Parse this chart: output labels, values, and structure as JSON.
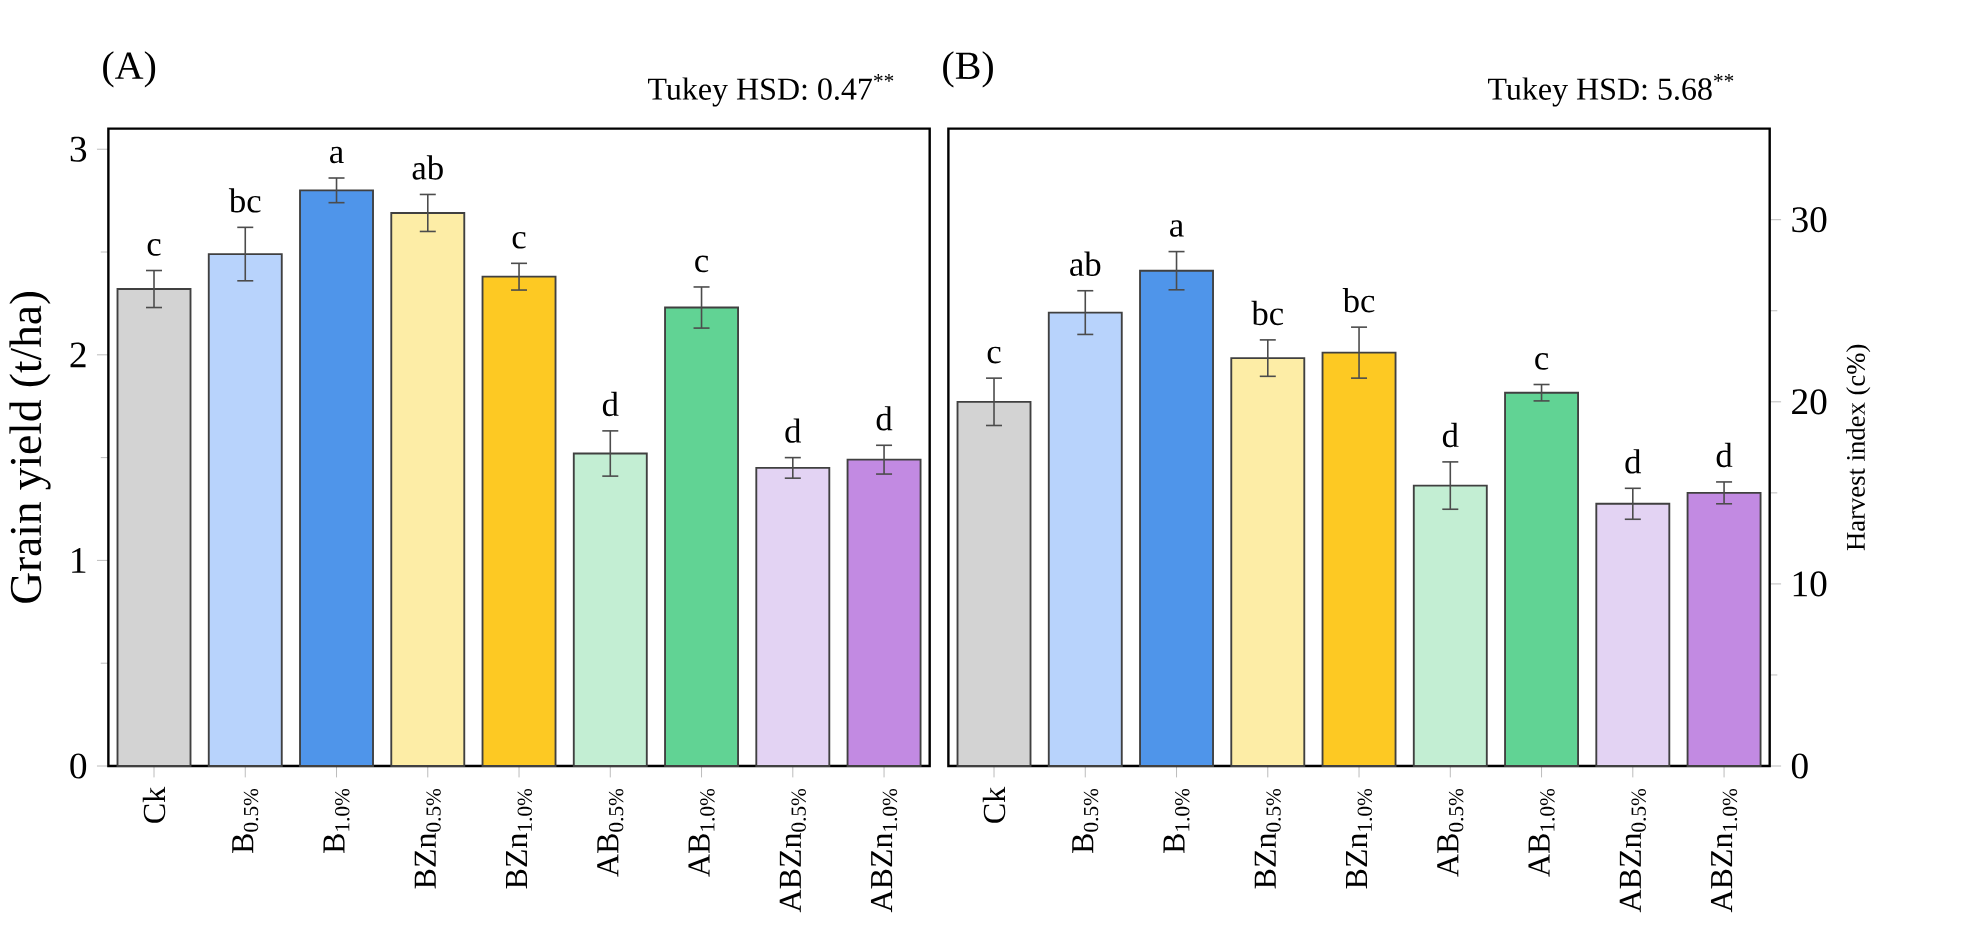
{
  "chart_data": [
    {
      "type": "bar",
      "title": "(A)",
      "ylabel": "Grain yield (t/ha)",
      "annotations": [
        "Tukey HSD: 0.47$^{**}$"
      ],
      "categories": [
        "Ck",
        "B$_{0.5%}$",
        "B$_{1.0%}$",
        "BZn$_{0.5%}$",
        "BZn$_{1.0%}$",
        "AB$_{0.5%}$",
        "AB$_{1.0%}$",
        "ABZn$_{0.5%}$",
        "ABZn$_{1.0%}$"
      ],
      "ylim": [
        0,
        3.1
      ],
      "yticks": [
        0,
        1,
        2,
        3
      ],
      "series": [
        {
          "values": [
            2.32,
            2.49,
            2.8,
            2.69,
            2.38,
            1.52,
            2.23,
            1.45,
            1.49
          ],
          "errors": [
            0.09,
            0.13,
            0.06,
            0.09,
            0.065,
            0.11,
            0.1,
            0.05,
            0.07
          ],
          "value_labels": [
            "c",
            "bc",
            "a",
            "ab",
            "c",
            "d",
            "c",
            "d",
            "d"
          ],
          "colors": [
            "#d3d3d3",
            "#b8d3fc",
            "#4f95ea",
            "#fdeda6",
            "#fdc923",
            "#c3eed3",
            "#61d394",
            "#e3d3f3",
            "#c28ae2"
          ]
        }
      ]
    },
    {
      "type": "bar",
      "title": "(B)",
      "y2label": "Harvest index (c%)",
      "annotations": [
        "Tukey HSD: 5.68$^{**}$"
      ],
      "categories": [
        "Ck",
        "B$_{0.5%}$",
        "B$_{1.0%}$",
        "BZn$_{0.5%}$",
        "BZn$_{1.0%}$",
        "AB$_{0.5%}$",
        "AB$_{1.0%}$",
        "ABZn$_{0.5%}$",
        "ABZn$_{1.0%}$"
      ],
      "y2lim": [
        0,
        35
      ],
      "y2ticks": [
        0,
        10,
        20,
        30
      ],
      "series": [
        {
          "axis": "y2",
          "values": [
            20.0,
            24.9,
            27.2,
            22.4,
            22.7,
            15.4,
            20.5,
            14.4,
            15.0
          ],
          "errors": [
            1.3,
            1.2,
            1.05,
            1.0,
            1.4,
            1.3,
            0.45,
            0.85,
            0.6
          ],
          "value_labels": [
            "c",
            "ab",
            "a",
            "bc",
            "bc",
            "d",
            "c",
            "d",
            "d"
          ],
          "colors": [
            "#d3d3d3",
            "#b8d3fc",
            "#4f95ea",
            "#fdeda6",
            "#fdc923",
            "#c3eed3",
            "#61d394",
            "#e3d3f3",
            "#c28ae2"
          ]
        }
      ]
    }
  ]
}
